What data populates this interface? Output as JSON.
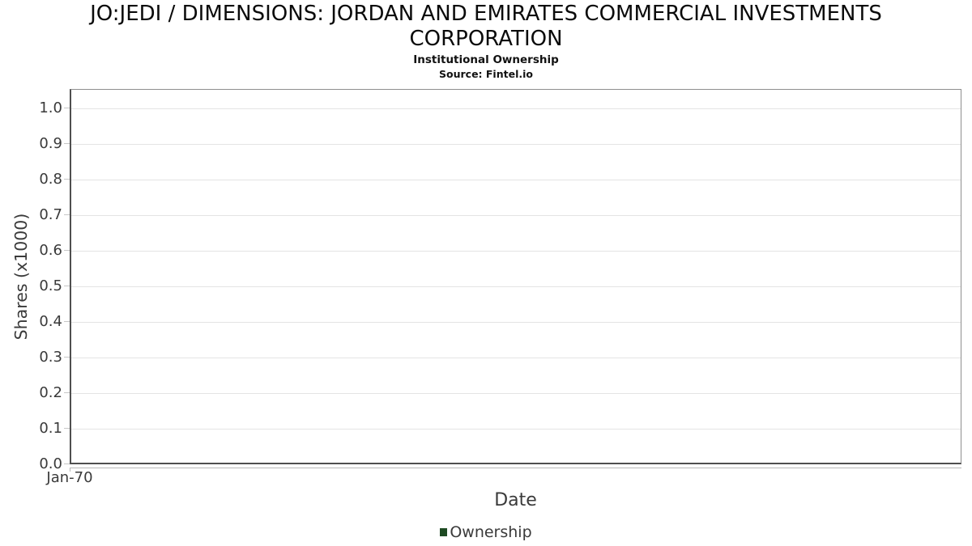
{
  "header": {
    "title": "JO:JEDI / DIMENSIONS: JORDAN AND EMIRATES COMMERCIAL INVESTMENTS CORPORATION",
    "subtitle": "Institutional Ownership",
    "source": "Source: Fintel.io"
  },
  "chart_data": {
    "type": "line",
    "title": "JO:JEDI / DIMENSIONS: JORDAN AND EMIRATES COMMERCIAL INVESTMENTS CORPORATION",
    "subtitle": "Institutional Ownership",
    "source": "Source: Fintel.io",
    "xlabel": "Date",
    "ylabel": "Shares (x1000)",
    "x_tick_labels": [
      "Jan-70"
    ],
    "y_tick_labels": [
      "0.0",
      "0.1",
      "0.2",
      "0.3",
      "0.4",
      "0.5",
      "0.6",
      "0.7",
      "0.8",
      "0.9",
      "1.0"
    ],
    "ylim": [
      0,
      1.05
    ],
    "grid": true,
    "legend_position": "bottom",
    "series": [
      {
        "name": "Ownership",
        "color": "#1e4a23",
        "x": [],
        "values": []
      }
    ]
  },
  "colors": {
    "series_green": "#1e4a23",
    "grid_line": "#e4e4e4",
    "plot_border": "#8e8e8e",
    "axis_dark": "#4f4f4f",
    "tick_mark": "#c6c6c6",
    "text": "#3a3a3a",
    "title_text": "#0b0b0b",
    "background": "#ffffff"
  }
}
